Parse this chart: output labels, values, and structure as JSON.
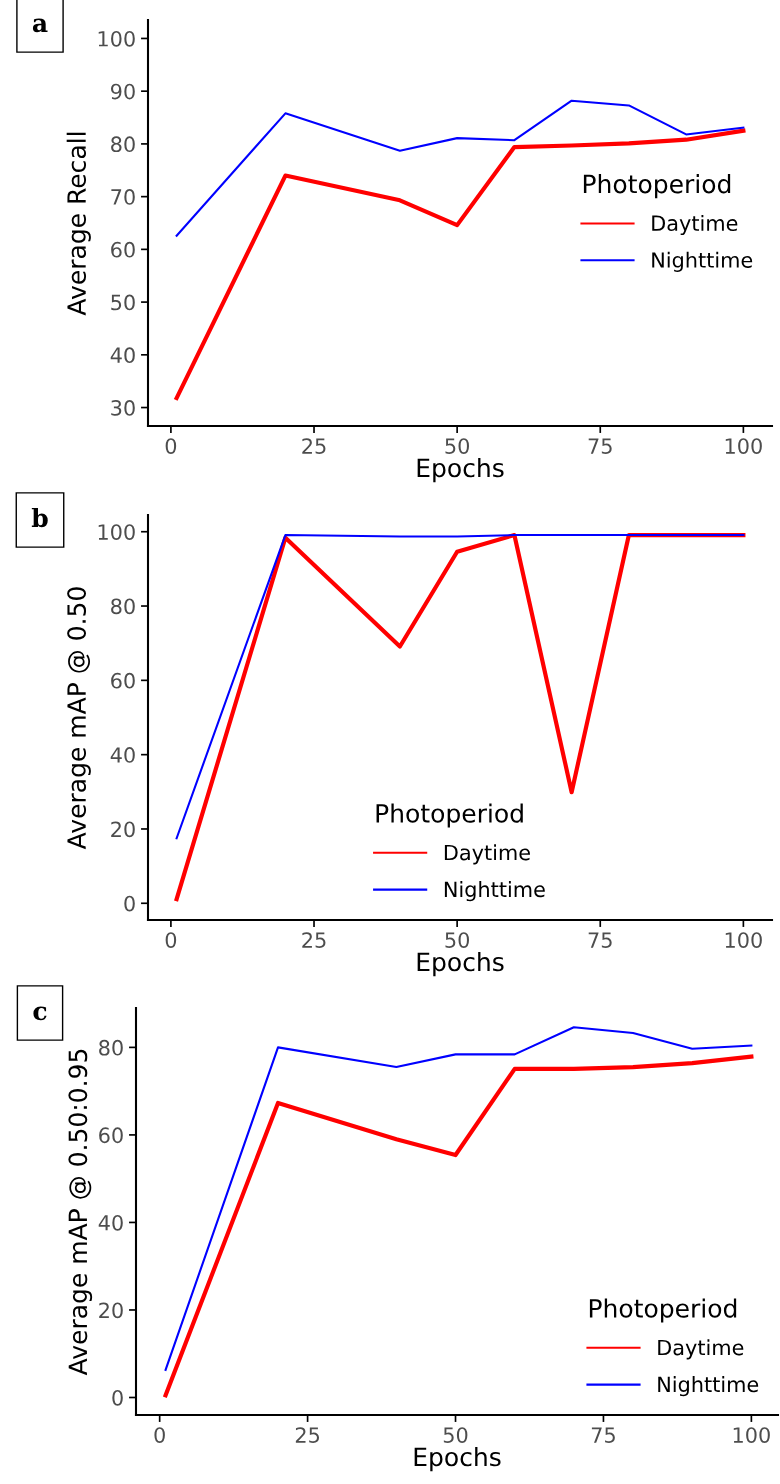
{
  "chart_data": [
    {
      "type": "line",
      "annotations": [
        "a"
      ],
      "xlabel": "Epochs",
      "ylabel": "Average Recall",
      "legend_title": "Photoperiod",
      "legend": "right",
      "grid": false,
      "x": [
        1,
        20,
        40,
        50,
        60,
        70,
        80,
        90,
        100
      ],
      "xlim": [
        -4,
        105
      ],
      "xticks": [
        0,
        25,
        50,
        75,
        100
      ],
      "ylim": [
        26.5,
        103.5
      ],
      "yticks": [
        30,
        40,
        50,
        60,
        70,
        80,
        90,
        100
      ],
      "series": [
        {
          "name": "Daytime",
          "color": "#ff0000",
          "values": [
            31.8,
            74.0,
            69.3,
            64.6,
            79.4,
            79.7,
            80.1,
            80.8,
            82.5
          ]
        },
        {
          "name": "Nighttime",
          "color": "#0000ff",
          "values": [
            62.6,
            85.8,
            78.7,
            81.1,
            80.7,
            88.2,
            87.3,
            81.8,
            83.1
          ]
        }
      ]
    },
    {
      "type": "line",
      "annotations": [
        "b"
      ],
      "xlabel": "Epochs",
      "ylabel": "Average mAP @ 0.50",
      "legend_title": "Photoperiod",
      "legend": "bottom",
      "grid": false,
      "x": [
        1,
        20,
        40,
        50,
        60,
        70,
        80,
        90,
        100
      ],
      "xlim": [
        -4,
        105
      ],
      "xticks": [
        0,
        25,
        50,
        75,
        100
      ],
      "ylim": [
        -4.5,
        104.5
      ],
      "yticks": [
        0,
        20,
        40,
        60,
        80,
        100
      ],
      "series": [
        {
          "name": "Daytime",
          "color": "#ff0000",
          "values": [
            1.1,
            98.4,
            69.1,
            94.6,
            99.1,
            29.9,
            99.1,
            99.1,
            99.1
          ]
        },
        {
          "name": "Nighttime",
          "color": "#0000ff",
          "values": [
            17.5,
            99.1,
            98.7,
            98.7,
            99.1,
            99.1,
            99.1,
            99.1,
            99.1
          ]
        }
      ]
    },
    {
      "type": "line",
      "annotations": [
        "c"
      ],
      "xlabel": "Epochs",
      "ylabel": "Average mAP @ 0.50:0.95",
      "legend_title": "Photoperiod",
      "legend": "bottom right",
      "grid": false,
      "x": [
        1,
        20,
        40,
        50,
        60,
        70,
        80,
        90,
        100
      ],
      "xlim": [
        -4,
        104.5
      ],
      "xticks": [
        0,
        25,
        50,
        75,
        100
      ],
      "ylim": [
        -4,
        89
      ],
      "yticks": [
        0,
        20,
        40,
        60,
        80
      ],
      "series": [
        {
          "name": "Daytime",
          "color": "#ff0000",
          "values": [
            0.5,
            67.3,
            59.0,
            55.4,
            75.1,
            75.1,
            75.5,
            76.4,
            77.9
          ]
        },
        {
          "name": "Nighttime",
          "color": "#0000ff",
          "values": [
            6.3,
            80.0,
            75.5,
            78.4,
            78.4,
            84.6,
            83.3,
            79.7,
            80.4
          ]
        }
      ]
    }
  ]
}
